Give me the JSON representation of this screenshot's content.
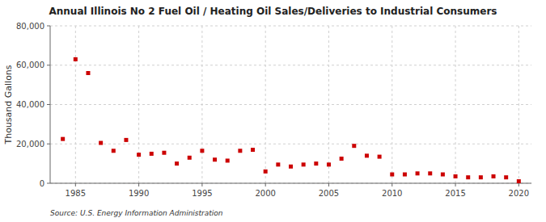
{
  "chart_data": {
    "type": "scatter",
    "title": "Annual Illinois No 2 Fuel Oil / Heating Oil Sales/Deliveries to Industrial Consumers",
    "ylabel": "Thousand Gallons",
    "source": "Source: U.S. Energy Information Administration",
    "color": "#CC0000",
    "marker": "square",
    "grid": true,
    "xlim": [
      1983,
      2021
    ],
    "ylim": [
      0,
      80000
    ],
    "xticks": [
      1985,
      1990,
      1995,
      2000,
      2005,
      2010,
      2015,
      2020
    ],
    "yticks": [
      0,
      {
        "value": 20000,
        "label": "20,000"
      },
      {
        "value": 40000,
        "label": "40,000"
      },
      {
        "value": 60000,
        "label": "60,000"
      },
      {
        "value": 80000,
        "label": "80,000"
      }
    ],
    "x": [
      1984,
      1985,
      1986,
      1987,
      1988,
      1989,
      1990,
      1991,
      1992,
      1993,
      1994,
      1995,
      1996,
      1997,
      1998,
      1999,
      2000,
      2001,
      2002,
      2003,
      2004,
      2005,
      2006,
      2007,
      2008,
      2009,
      2010,
      2011,
      2012,
      2013,
      2014,
      2015,
      2016,
      2017,
      2018,
      2019,
      2020
    ],
    "values": [
      22500,
      63000,
      56000,
      20500,
      16500,
      22000,
      14500,
      15000,
      15500,
      10000,
      13000,
      16500,
      12000,
      11500,
      16500,
      17000,
      6000,
      9500,
      8500,
      9500,
      10000,
      9500,
      12500,
      19000,
      14000,
      13500,
      4500,
      4500,
      5000,
      5000,
      4500,
      3500,
      3000,
      3000,
      3500,
      3000,
      1000
    ]
  }
}
